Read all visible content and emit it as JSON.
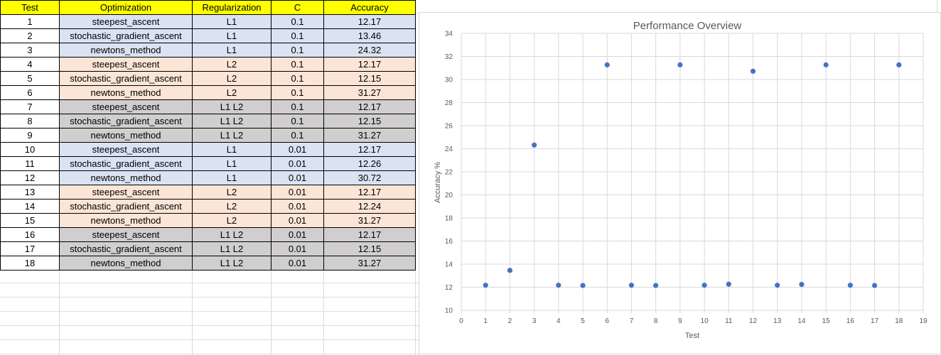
{
  "table": {
    "headers": [
      "Test",
      "Optimization",
      "Regularization",
      "C",
      "Accuracy"
    ],
    "rows": [
      {
        "test": "1",
        "optimization": "steepest_ascent",
        "regularization": "L1",
        "c": "0.1",
        "accuracy": "12.17"
      },
      {
        "test": "2",
        "optimization": "stochastic_gradient_ascent",
        "regularization": "L1",
        "c": "0.1",
        "accuracy": "13.46"
      },
      {
        "test": "3",
        "optimization": "newtons_method",
        "regularization": "L1",
        "c": "0.1",
        "accuracy": "24.32"
      },
      {
        "test": "4",
        "optimization": "steepest_ascent",
        "regularization": "L2",
        "c": "0.1",
        "accuracy": "12.17"
      },
      {
        "test": "5",
        "optimization": "stochastic_gradient_ascent",
        "regularization": "L2",
        "c": "0.1",
        "accuracy": "12.15"
      },
      {
        "test": "6",
        "optimization": "newtons_method",
        "regularization": "L2",
        "c": "0.1",
        "accuracy": "31.27"
      },
      {
        "test": "7",
        "optimization": "steepest_ascent",
        "regularization": "L1 L2",
        "c": "0.1",
        "accuracy": "12.17"
      },
      {
        "test": "8",
        "optimization": "stochastic_gradient_ascent",
        "regularization": "L1 L2",
        "c": "0.1",
        "accuracy": "12.15"
      },
      {
        "test": "9",
        "optimization": "newtons_method",
        "regularization": "L1 L2",
        "c": "0.1",
        "accuracy": "31.27"
      },
      {
        "test": "10",
        "optimization": "steepest_ascent",
        "regularization": "L1",
        "c": "0.01",
        "accuracy": "12.17"
      },
      {
        "test": "11",
        "optimization": "stochastic_gradient_ascent",
        "regularization": "L1",
        "c": "0.01",
        "accuracy": "12.26"
      },
      {
        "test": "12",
        "optimization": "newtons_method",
        "regularization": "L1",
        "c": "0.01",
        "accuracy": "30.72"
      },
      {
        "test": "13",
        "optimization": "steepest_ascent",
        "regularization": "L2",
        "c": "0.01",
        "accuracy": "12.17"
      },
      {
        "test": "14",
        "optimization": "stochastic_gradient_ascent",
        "regularization": "L2",
        "c": "0.01",
        "accuracy": "12.24"
      },
      {
        "test": "15",
        "optimization": "newtons_method",
        "regularization": "L2",
        "c": "0.01",
        "accuracy": "31.27"
      },
      {
        "test": "16",
        "optimization": "steepest_ascent",
        "regularization": "L1 L2",
        "c": "0.01",
        "accuracy": "12.17"
      },
      {
        "test": "17",
        "optimization": "stochastic_gradient_ascent",
        "regularization": "L1 L2",
        "c": "0.01",
        "accuracy": "12.15"
      },
      {
        "test": "18",
        "optimization": "newtons_method",
        "regularization": "L1 L2",
        "c": "0.01",
        "accuracy": "31.27"
      }
    ]
  },
  "colors": {
    "header": "#ffff00",
    "group_l1": "#dae3f3",
    "group_l2": "#fbe5d6",
    "group_l1l2": "#d0cece",
    "marker": "#4472c4",
    "chart_text": "#595959",
    "chart_grid": "#d9d9d9"
  },
  "chart_data": {
    "type": "scatter",
    "title": "Performance Overview",
    "xlabel": "Test",
    "ylabel": "Accuracy %",
    "xlim": [
      0,
      19
    ],
    "ylim": [
      10,
      34
    ],
    "xticks": [
      0,
      1,
      2,
      3,
      4,
      5,
      6,
      7,
      8,
      9,
      10,
      11,
      12,
      13,
      14,
      15,
      16,
      17,
      18,
      19
    ],
    "yticks": [
      10,
      12,
      14,
      16,
      18,
      20,
      22,
      24,
      26,
      28,
      30,
      32,
      34
    ],
    "grid": true,
    "legend": "none",
    "x": [
      1,
      2,
      3,
      4,
      5,
      6,
      7,
      8,
      9,
      10,
      11,
      12,
      13,
      14,
      15,
      16,
      17,
      18
    ],
    "y": [
      12.17,
      13.46,
      24.32,
      12.17,
      12.15,
      31.27,
      12.17,
      12.15,
      31.27,
      12.17,
      12.26,
      30.72,
      12.17,
      12.24,
      31.27,
      12.17,
      12.15,
      31.27
    ]
  }
}
